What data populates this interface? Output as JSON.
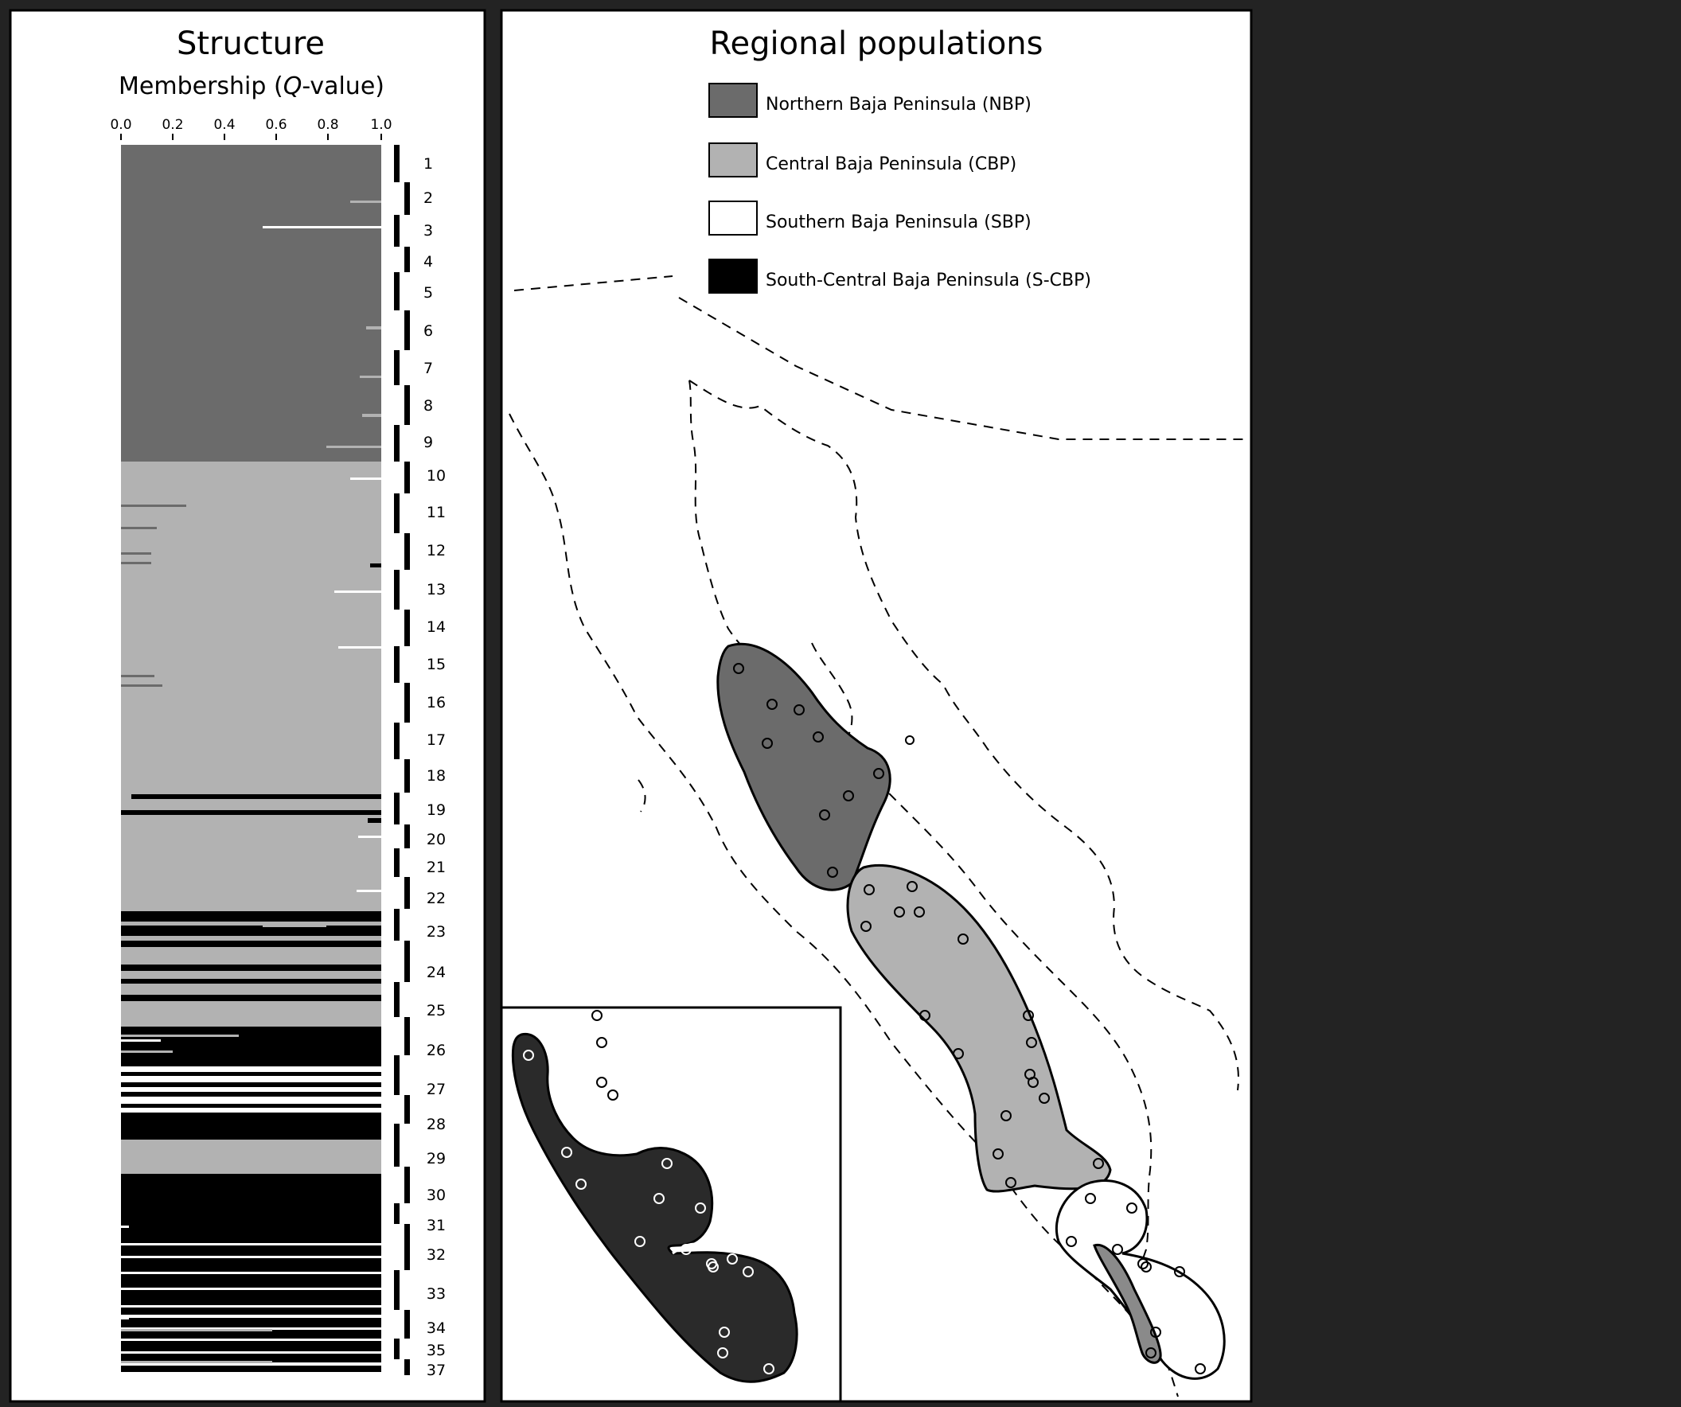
{
  "structure_panel": {
    "title": "Structure",
    "axis_label_prefix": "Membership (",
    "axis_label_var": "Q",
    "axis_label_suffix": "-value)",
    "ticks": [
      "0.0",
      "0.2",
      "0.4",
      "0.6",
      "0.8",
      "1.0"
    ]
  },
  "populations": [
    "1",
    "2",
    "3",
    "4",
    "5",
    "6",
    "7",
    "8",
    "9",
    "10",
    "11",
    "12",
    "13",
    "14",
    "15",
    "16",
    "17",
    "18",
    "19",
    "20",
    "21",
    "22",
    "23",
    "24",
    "25",
    "26",
    "27",
    "28",
    "29",
    "30",
    "31",
    "32",
    "33",
    "34",
    "35",
    "37"
  ],
  "map_panel": {
    "title": "Regional populations",
    "legend": [
      {
        "label": "Northern Baja Peninsula (NBP)",
        "color": "#6b6b6b"
      },
      {
        "label": "Central Baja Peninsula (CBP)",
        "color": "#b2b2b2"
      },
      {
        "label": "Southern Baja Peninsula (SBP)",
        "color": "#ffffff"
      },
      {
        "label": "South-Central Baja Peninsula (S-CBP)",
        "color": "#000000"
      }
    ]
  },
  "colors": {
    "background": "#232323",
    "nbp": "#6b6b6b",
    "cbp": "#b2b2b2",
    "sbp": "#ffffff",
    "scbp": "#000000",
    "inset_fill": "#2a2a2a"
  }
}
